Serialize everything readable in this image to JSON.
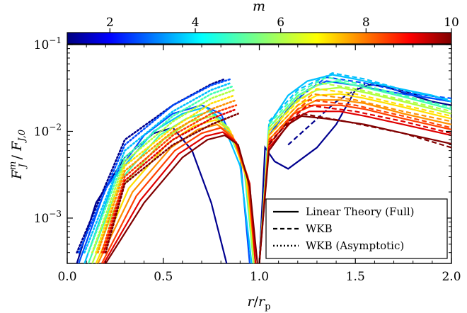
{
  "chart_data": {
    "type": "line",
    "xlabel": "r/r_p",
    "ylabel": "F_J^m / F_{J,0}",
    "xlim": [
      0.0,
      2.0
    ],
    "ylim": [
      0.0003,
      0.1
    ],
    "y_scale": "log",
    "x_ticks": [
      "0.0",
      "0.5",
      "1.0",
      "1.5",
      "2.0"
    ],
    "colorbar": {
      "label": "m",
      "ticks": [
        "2",
        "4",
        "6",
        "8",
        "10"
      ],
      "range": [
        1,
        10
      ],
      "colormap": "jet"
    },
    "legend": {
      "placement": "lower-right",
      "entries": [
        {
          "label": "Linear Theory (Full)",
          "style": "solid"
        },
        {
          "label": "WKB",
          "style": "dashed"
        },
        {
          "label": "WKB (Asymptotic)",
          "style": "dotted"
        }
      ]
    },
    "series": [
      {
        "m": 1,
        "color": "#00008f",
        "full_inner": [
          [
            0.05,
            0.0003
          ],
          [
            0.15,
            0.0015
          ],
          [
            0.3,
            0.005
          ],
          [
            0.45,
            0.0095
          ],
          [
            0.55,
            0.011
          ],
          [
            0.65,
            0.006
          ],
          [
            0.75,
            0.0015
          ],
          [
            0.83,
            0.0003
          ]
        ],
        "full_outer": [
          [
            1.0,
            0.0003
          ],
          [
            1.03,
            0.0065
          ],
          [
            1.08,
            0.0045
          ],
          [
            1.15,
            0.0037
          ],
          [
            1.3,
            0.0065
          ],
          [
            1.4,
            0.012
          ],
          [
            1.5,
            0.03
          ],
          [
            1.6,
            0.036
          ],
          [
            1.75,
            0.028
          ],
          [
            1.9,
            0.022
          ],
          [
            2.0,
            0.02
          ]
        ],
        "wkb_outer": [
          [
            1.15,
            0.007
          ],
          [
            1.4,
            0.022
          ],
          [
            1.55,
            0.035
          ],
          [
            1.7,
            0.032
          ],
          [
            1.85,
            0.025
          ],
          [
            2.0,
            0.022
          ]
        ],
        "asym_inner": [
          [
            0.05,
            0.0004
          ],
          [
            0.3,
            0.008
          ],
          [
            0.55,
            0.02
          ],
          [
            0.75,
            0.035
          ],
          [
            0.82,
            0.04
          ]
        ]
      },
      {
        "m": 2,
        "color": "#0050ff",
        "full_inner": [
          [
            0.06,
            0.0003
          ],
          [
            0.2,
            0.0022
          ],
          [
            0.4,
            0.009
          ],
          [
            0.55,
            0.016
          ],
          [
            0.7,
            0.02
          ],
          [
            0.8,
            0.016
          ],
          [
            0.9,
            0.005
          ],
          [
            0.95,
            0.0003
          ]
        ],
        "full_outer": [
          [
            1.0,
            0.0003
          ],
          [
            1.05,
            0.009
          ],
          [
            1.15,
            0.018
          ],
          [
            1.25,
            0.03
          ],
          [
            1.35,
            0.038
          ],
          [
            1.5,
            0.034
          ],
          [
            1.7,
            0.028
          ],
          [
            1.9,
            0.024
          ],
          [
            2.0,
            0.022
          ]
        ],
        "wkb_outer": [
          [
            1.05,
            0.01
          ],
          [
            1.2,
            0.024
          ],
          [
            1.35,
            0.042
          ],
          [
            1.55,
            0.036
          ],
          [
            1.8,
            0.027
          ],
          [
            2.0,
            0.024
          ]
        ],
        "asym_inner": [
          [
            0.06,
            0.0004
          ],
          [
            0.3,
            0.007
          ],
          [
            0.55,
            0.02
          ],
          [
            0.75,
            0.034
          ],
          [
            0.85,
            0.04
          ]
        ]
      },
      {
        "m": 3,
        "color": "#00c0ff",
        "full_inner": [
          [
            0.09,
            0.0003
          ],
          [
            0.25,
            0.003
          ],
          [
            0.45,
            0.01
          ],
          [
            0.6,
            0.016
          ],
          [
            0.72,
            0.019
          ],
          [
            0.8,
            0.014
          ],
          [
            0.9,
            0.004
          ],
          [
            0.96,
            0.0003
          ]
        ],
        "full_outer": [
          [
            1.0,
            0.0003
          ],
          [
            1.05,
            0.012
          ],
          [
            1.15,
            0.026
          ],
          [
            1.25,
            0.038
          ],
          [
            1.38,
            0.045
          ],
          [
            1.5,
            0.04
          ],
          [
            1.7,
            0.032
          ],
          [
            1.9,
            0.026
          ],
          [
            2.0,
            0.022
          ]
        ],
        "wkb_outer": [
          [
            1.05,
            0.013
          ],
          [
            1.2,
            0.03
          ],
          [
            1.38,
            0.047
          ],
          [
            1.55,
            0.04
          ],
          [
            1.8,
            0.028
          ],
          [
            2.0,
            0.023
          ]
        ],
        "asym_inner": [
          [
            0.09,
            0.0004
          ],
          [
            0.3,
            0.006
          ],
          [
            0.55,
            0.017
          ],
          [
            0.75,
            0.03
          ],
          [
            0.85,
            0.036
          ]
        ]
      },
      {
        "m": 4,
        "color": "#40ffb0",
        "full_inner": [
          [
            0.11,
            0.0003
          ],
          [
            0.28,
            0.0028
          ],
          [
            0.48,
            0.009
          ],
          [
            0.62,
            0.014
          ],
          [
            0.74,
            0.017
          ],
          [
            0.82,
            0.012
          ],
          [
            0.92,
            0.004
          ],
          [
            0.97,
            0.0003
          ]
        ],
        "full_outer": [
          [
            1.0,
            0.0003
          ],
          [
            1.05,
            0.011
          ],
          [
            1.2,
            0.026
          ],
          [
            1.3,
            0.034
          ],
          [
            1.4,
            0.038
          ],
          [
            1.55,
            0.032
          ],
          [
            1.75,
            0.025
          ],
          [
            2.0,
            0.018
          ]
        ],
        "wkb_outer": [
          [
            1.05,
            0.012
          ],
          [
            1.2,
            0.028
          ],
          [
            1.35,
            0.042
          ],
          [
            1.5,
            0.036
          ],
          [
            1.75,
            0.026
          ],
          [
            2.0,
            0.019
          ]
        ],
        "asym_inner": [
          [
            0.11,
            0.0004
          ],
          [
            0.3,
            0.005
          ],
          [
            0.55,
            0.015
          ],
          [
            0.75,
            0.027
          ],
          [
            0.86,
            0.033
          ]
        ]
      },
      {
        "m": 5,
        "color": "#b0ff40",
        "full_inner": [
          [
            0.13,
            0.0003
          ],
          [
            0.3,
            0.0025
          ],
          [
            0.5,
            0.008
          ],
          [
            0.64,
            0.013
          ],
          [
            0.76,
            0.015
          ],
          [
            0.84,
            0.011
          ],
          [
            0.93,
            0.0035
          ],
          [
            0.97,
            0.0003
          ]
        ],
        "full_outer": [
          [
            1.0,
            0.0003
          ],
          [
            1.05,
            0.01
          ],
          [
            1.2,
            0.023
          ],
          [
            1.3,
            0.03
          ],
          [
            1.42,
            0.032
          ],
          [
            1.55,
            0.028
          ],
          [
            1.75,
            0.022
          ],
          [
            2.0,
            0.016
          ]
        ],
        "wkb_outer": [
          [
            1.05,
            0.011
          ],
          [
            1.2,
            0.025
          ],
          [
            1.32,
            0.036
          ],
          [
            1.5,
            0.031
          ],
          [
            1.75,
            0.023
          ],
          [
            2.0,
            0.017
          ]
        ],
        "asym_inner": [
          [
            0.13,
            0.0004
          ],
          [
            0.3,
            0.0045
          ],
          [
            0.55,
            0.013
          ],
          [
            0.75,
            0.024
          ],
          [
            0.87,
            0.03
          ]
        ]
      },
      {
        "m": 6,
        "color": "#ffe000",
        "full_inner": [
          [
            0.15,
            0.0003
          ],
          [
            0.32,
            0.0022
          ],
          [
            0.52,
            0.0072
          ],
          [
            0.66,
            0.0115
          ],
          [
            0.77,
            0.0135
          ],
          [
            0.85,
            0.01
          ],
          [
            0.93,
            0.003
          ],
          [
            0.98,
            0.0003
          ]
        ],
        "full_outer": [
          [
            1.0,
            0.0003
          ],
          [
            1.05,
            0.009
          ],
          [
            1.2,
            0.02
          ],
          [
            1.3,
            0.026
          ],
          [
            1.42,
            0.027
          ],
          [
            1.55,
            0.024
          ],
          [
            1.75,
            0.019
          ],
          [
            2.0,
            0.014
          ]
        ],
        "wkb_outer": [
          [
            1.05,
            0.01
          ],
          [
            1.2,
            0.022
          ],
          [
            1.3,
            0.031
          ],
          [
            1.5,
            0.027
          ],
          [
            1.75,
            0.02
          ],
          [
            2.0,
            0.015
          ]
        ],
        "asym_inner": [
          [
            0.15,
            0.0004
          ],
          [
            0.3,
            0.004
          ],
          [
            0.55,
            0.011
          ],
          [
            0.75,
            0.021
          ],
          [
            0.87,
            0.026
          ]
        ]
      },
      {
        "m": 7,
        "color": "#ff9000",
        "full_inner": [
          [
            0.16,
            0.0003
          ],
          [
            0.34,
            0.002
          ],
          [
            0.54,
            0.0065
          ],
          [
            0.68,
            0.0105
          ],
          [
            0.78,
            0.012
          ],
          [
            0.86,
            0.009
          ],
          [
            0.94,
            0.003
          ],
          [
            0.98,
            0.0003
          ]
        ],
        "full_outer": [
          [
            1.0,
            0.0003
          ],
          [
            1.05,
            0.008
          ],
          [
            1.2,
            0.018
          ],
          [
            1.3,
            0.023
          ],
          [
            1.42,
            0.023
          ],
          [
            1.55,
            0.021
          ],
          [
            1.75,
            0.016
          ],
          [
            2.0,
            0.012
          ]
        ],
        "wkb_outer": [
          [
            1.05,
            0.009
          ],
          [
            1.2,
            0.02
          ],
          [
            1.28,
            0.027
          ],
          [
            1.5,
            0.023
          ],
          [
            1.75,
            0.017
          ],
          [
            2.0,
            0.013
          ]
        ],
        "asym_inner": [
          [
            0.16,
            0.0004
          ],
          [
            0.3,
            0.0035
          ],
          [
            0.55,
            0.01
          ],
          [
            0.75,
            0.018
          ],
          [
            0.88,
            0.023
          ]
        ]
      },
      {
        "m": 8,
        "color": "#ff4000",
        "full_inner": [
          [
            0.18,
            0.0003
          ],
          [
            0.36,
            0.0018
          ],
          [
            0.56,
            0.006
          ],
          [
            0.7,
            0.0095
          ],
          [
            0.8,
            0.011
          ],
          [
            0.87,
            0.008
          ],
          [
            0.94,
            0.0028
          ],
          [
            0.98,
            0.0003
          ]
        ],
        "full_outer": [
          [
            1.0,
            0.0003
          ],
          [
            1.05,
            0.007
          ],
          [
            1.18,
            0.016
          ],
          [
            1.28,
            0.02
          ],
          [
            1.42,
            0.02
          ],
          [
            1.55,
            0.018
          ],
          [
            1.75,
            0.014
          ],
          [
            2.0,
            0.0105
          ]
        ],
        "wkb_outer": [
          [
            1.05,
            0.008
          ],
          [
            1.2,
            0.018
          ],
          [
            1.26,
            0.023
          ],
          [
            1.5,
            0.02
          ],
          [
            1.75,
            0.015
          ],
          [
            2.0,
            0.011
          ]
        ],
        "asym_inner": [
          [
            0.18,
            0.0004
          ],
          [
            0.3,
            0.003
          ],
          [
            0.55,
            0.009
          ],
          [
            0.75,
            0.016
          ],
          [
            0.88,
            0.02
          ]
        ]
      },
      {
        "m": 9,
        "color": "#e00000",
        "full_inner": [
          [
            0.19,
            0.0003
          ],
          [
            0.38,
            0.0016
          ],
          [
            0.58,
            0.0055
          ],
          [
            0.72,
            0.0088
          ],
          [
            0.81,
            0.0098
          ],
          [
            0.88,
            0.0075
          ],
          [
            0.95,
            0.0025
          ],
          [
            0.98,
            0.0003
          ]
        ],
        "full_outer": [
          [
            1.0,
            0.0003
          ],
          [
            1.05,
            0.0065
          ],
          [
            1.18,
            0.014
          ],
          [
            1.26,
            0.017
          ],
          [
            1.42,
            0.017
          ],
          [
            1.55,
            0.015
          ],
          [
            1.75,
            0.012
          ],
          [
            2.0,
            0.009
          ]
        ],
        "wkb_outer": [
          [
            1.05,
            0.0075
          ],
          [
            1.2,
            0.016
          ],
          [
            1.25,
            0.02
          ],
          [
            1.5,
            0.017
          ],
          [
            1.75,
            0.013
          ],
          [
            2.0,
            0.0095
          ]
        ],
        "asym_inner": [
          [
            0.19,
            0.0004
          ],
          [
            0.3,
            0.0027
          ],
          [
            0.55,
            0.008
          ],
          [
            0.75,
            0.014
          ],
          [
            0.88,
            0.018
          ]
        ]
      },
      {
        "m": 10,
        "color": "#800000",
        "full_inner": [
          [
            0.2,
            0.0003
          ],
          [
            0.4,
            0.0015
          ],
          [
            0.6,
            0.005
          ],
          [
            0.73,
            0.008
          ],
          [
            0.82,
            0.009
          ],
          [
            0.89,
            0.007
          ],
          [
            0.95,
            0.0023
          ],
          [
            0.99,
            0.0003
          ]
        ],
        "full_outer": [
          [
            1.0,
            0.0003
          ],
          [
            1.05,
            0.006
          ],
          [
            1.15,
            0.012
          ],
          [
            1.22,
            0.015
          ],
          [
            1.35,
            0.014
          ],
          [
            1.55,
            0.012
          ],
          [
            1.75,
            0.0095
          ],
          [
            2.0,
            0.0072
          ]
        ],
        "wkb_outer": [
          [
            1.05,
            0.007
          ],
          [
            1.15,
            0.013
          ],
          [
            1.22,
            0.016
          ],
          [
            1.45,
            0.013
          ],
          [
            1.75,
            0.0095
          ],
          [
            2.0,
            0.0065
          ]
        ],
        "asym_inner": [
          [
            0.2,
            0.0004
          ],
          [
            0.3,
            0.0025
          ],
          [
            0.55,
            0.007
          ],
          [
            0.75,
            0.012
          ],
          [
            0.89,
            0.016
          ]
        ]
      }
    ]
  }
}
